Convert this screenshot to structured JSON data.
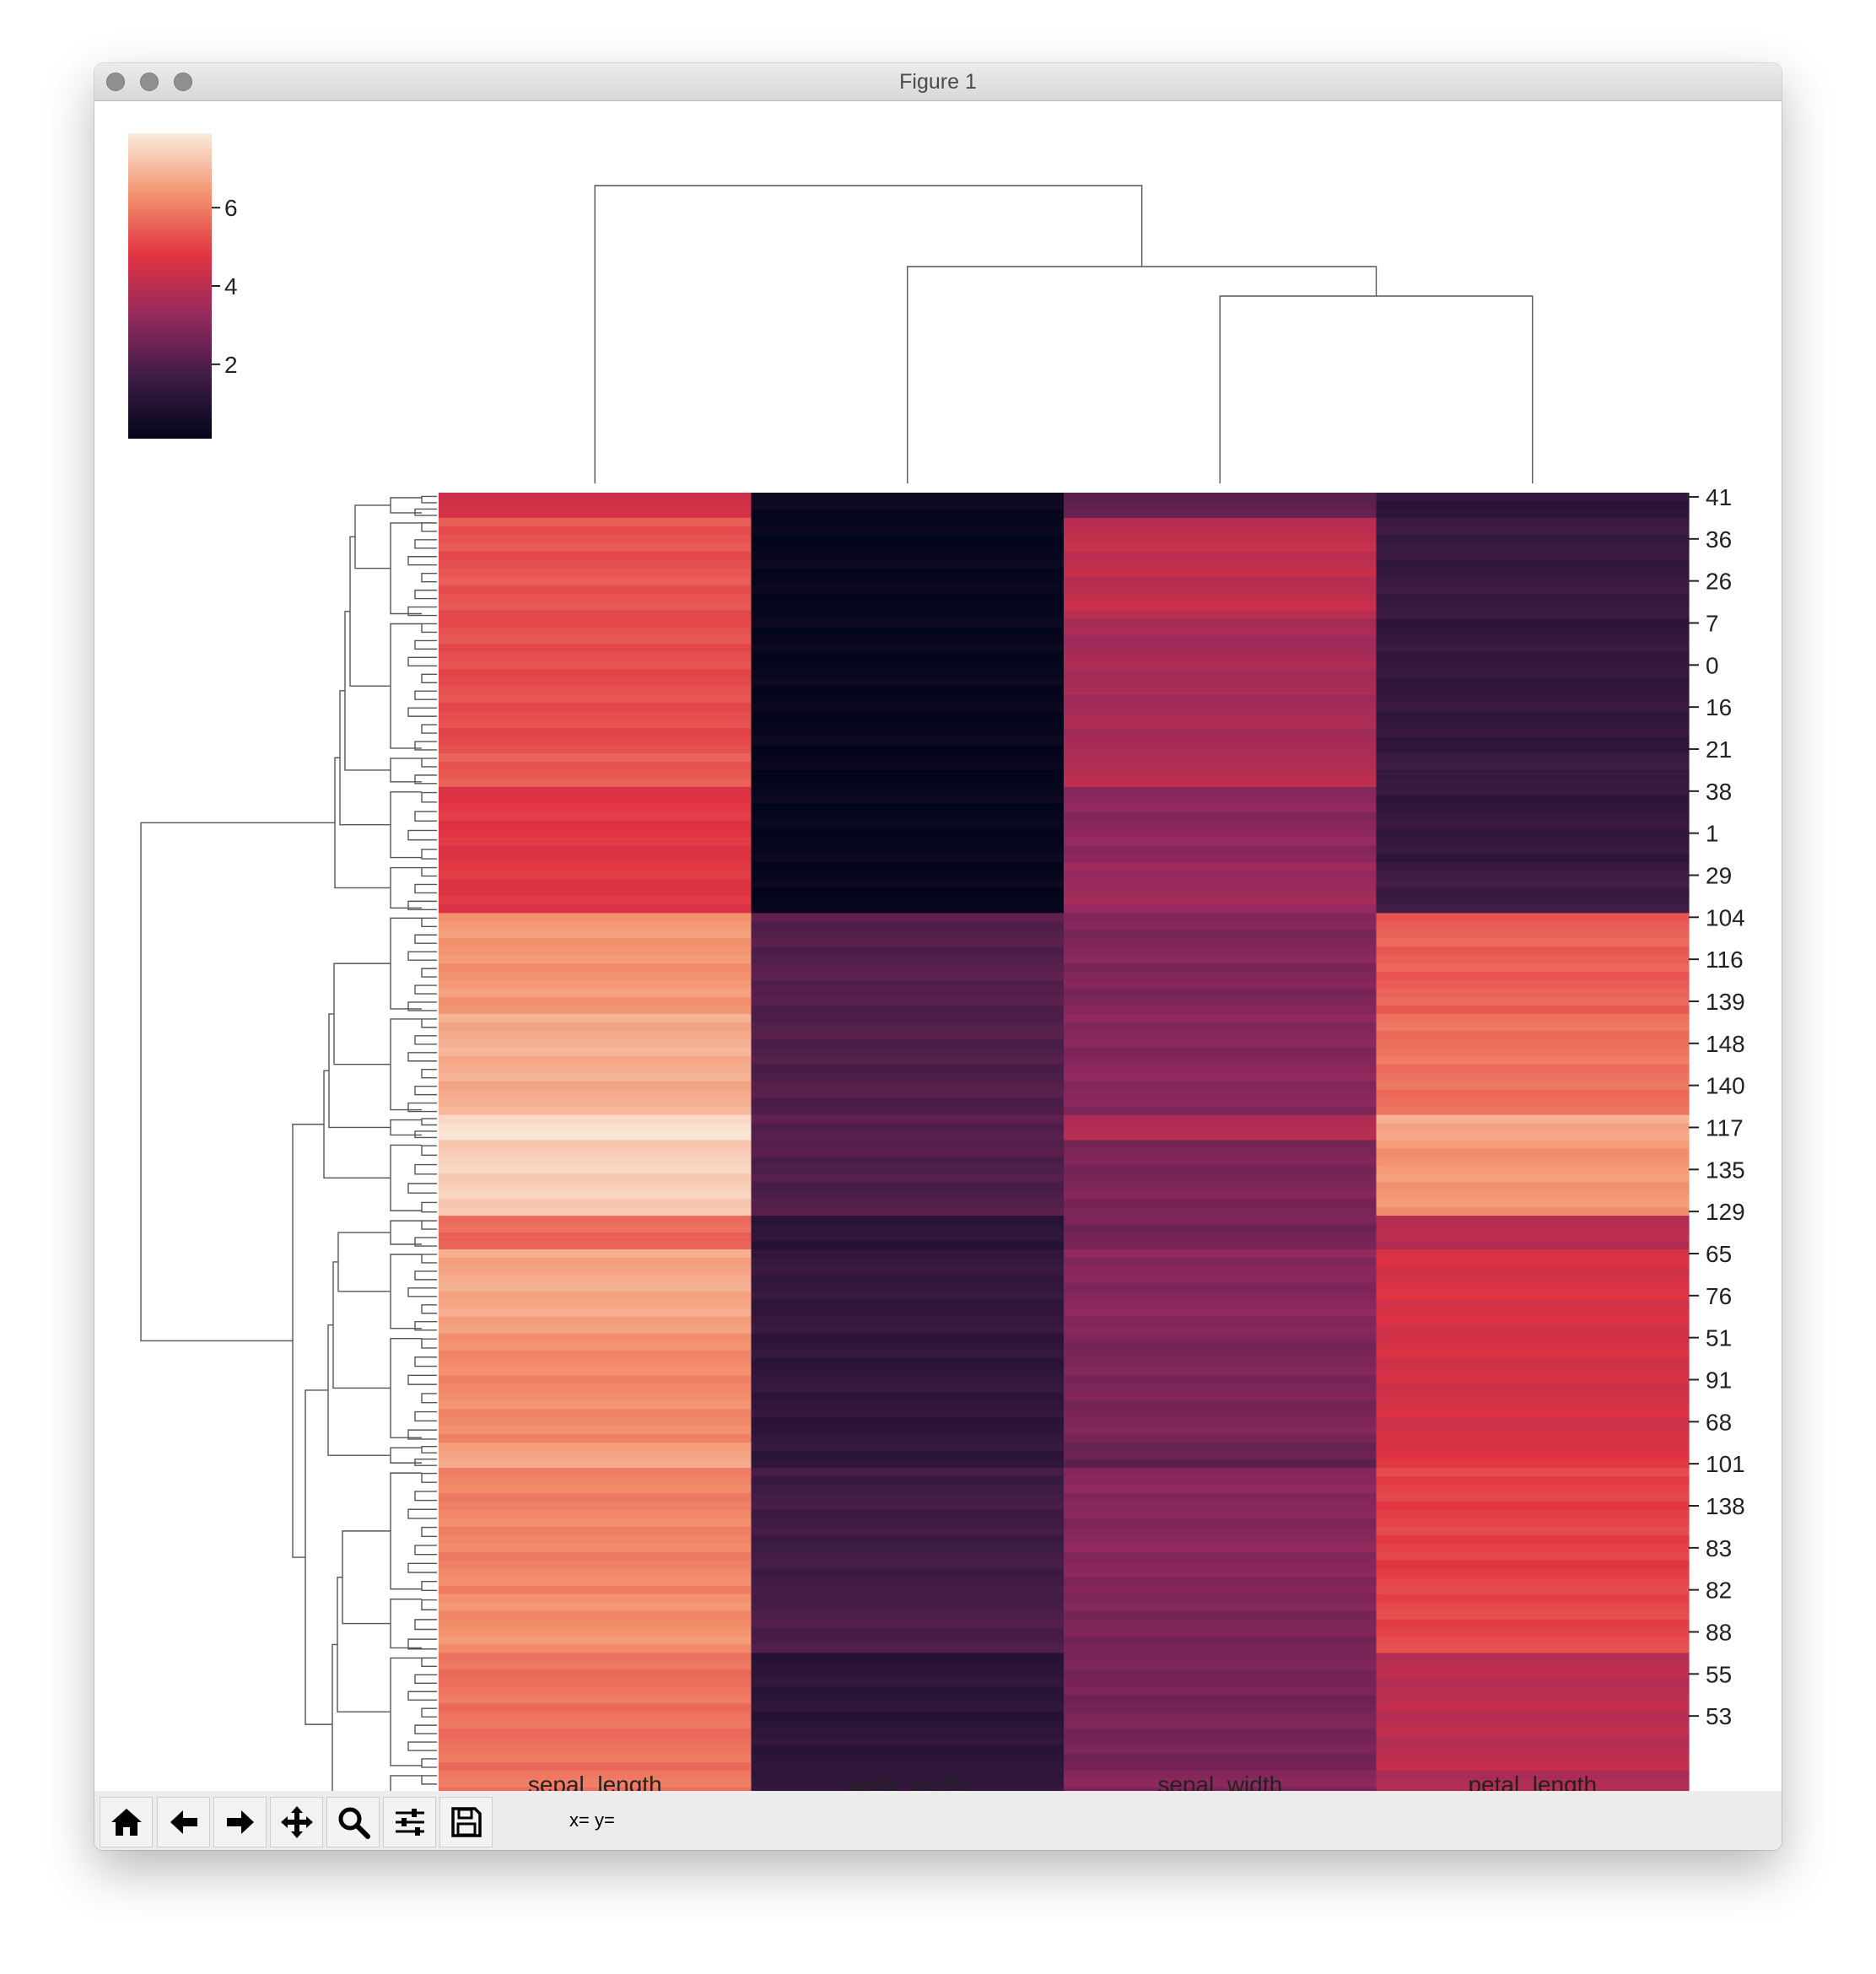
{
  "window": {
    "title": "Figure 1"
  },
  "toolbar": {
    "coords": "x= y=",
    "tools": [
      "home-icon",
      "back-arrow-icon",
      "forward-arrow-icon",
      "pan-icon",
      "zoom-icon",
      "configure-subplots-icon",
      "save-icon"
    ]
  },
  "colorbar": {
    "ticks": [
      2,
      4,
      6
    ],
    "range": [
      0.1,
      7.9
    ],
    "cmap": "rocket"
  },
  "chart_data": {
    "type": "heatmap",
    "title": "",
    "columns": [
      "sepal_length",
      "petal_width",
      "sepal_width",
      "petal_length"
    ],
    "row_tick_labels": [
      "41",
      "36",
      "26",
      "7",
      "0",
      "16",
      "21",
      "38",
      "1",
      "29",
      "104",
      "116",
      "139",
      "148",
      "140",
      "117",
      "135",
      "129",
      "65",
      "76",
      "51",
      "91",
      "68",
      "101",
      "138",
      "83",
      "82",
      "88",
      "55",
      "53"
    ],
    "n_rows": 150,
    "value_range": [
      0.1,
      7.9
    ],
    "row_blocks": [
      {
        "rows": 3,
        "values": [
          4.5,
          0.3,
          2.3,
          1.3
        ]
      },
      {
        "rows": 12,
        "values": [
          5.3,
          0.2,
          4.1,
          1.5
        ]
      },
      {
        "rows": 16,
        "values": [
          5.2,
          0.2,
          3.6,
          1.4
        ]
      },
      {
        "rows": 4,
        "values": [
          5.4,
          0.2,
          3.9,
          1.5
        ]
      },
      {
        "rows": 9,
        "values": [
          4.8,
          0.2,
          3.1,
          1.4
        ]
      },
      {
        "rows": 6,
        "values": [
          4.8,
          0.2,
          3.4,
          1.6
        ]
      },
      {
        "rows": 12,
        "values": [
          6.4,
          2.1,
          2.9,
          5.5
        ]
      },
      {
        "rows": 12,
        "values": [
          6.8,
          2.0,
          3.0,
          5.8
        ]
      },
      {
        "rows": 3,
        "values": [
          7.7,
          2.2,
          3.8,
          6.7
        ]
      },
      {
        "rows": 9,
        "values": [
          7.4,
          2.0,
          2.8,
          6.4
        ]
      },
      {
        "rows": 4,
        "values": [
          5.6,
          1.2,
          2.7,
          3.9
        ]
      },
      {
        "rows": 10,
        "values": [
          6.7,
          1.4,
          3.0,
          4.6
        ]
      },
      {
        "rows": 13,
        "values": [
          6.2,
          1.3,
          2.8,
          4.5
        ]
      },
      {
        "rows": 3,
        "values": [
          6.6,
          1.3,
          2.4,
          4.8
        ]
      },
      {
        "rows": 15,
        "values": [
          6.1,
          1.7,
          3.0,
          5.0
        ]
      },
      {
        "rows": 7,
        "values": [
          6.3,
          1.9,
          2.8,
          5.1
        ]
      },
      {
        "rows": 14,
        "values": [
          5.8,
          1.2,
          2.7,
          4.0
        ]
      },
      {
        "rows": 8,
        "values": [
          5.9,
          1.4,
          2.9,
          3.8
        ]
      }
    ]
  }
}
